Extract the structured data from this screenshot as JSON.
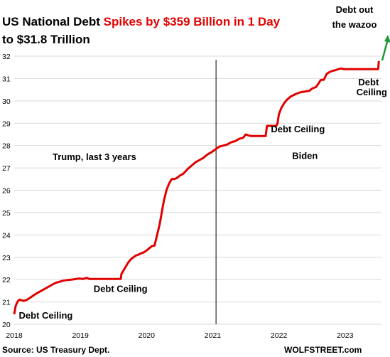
{
  "chart_data": {
    "type": "line",
    "title_part1": "US National Debt ",
    "title_part2": "Spikes by $359 Billion in 1 Day",
    "title_line2": "to $31.8 Trillion",
    "corner_annotation_line1": "Debt out",
    "corner_annotation_line2": "the wazoo",
    "source": "Source: US Treasury Dept.",
    "brand": "WOLFSTREET.com",
    "colors": {
      "line": "#e00000",
      "title_highlight": "#e00000",
      "corner_annotation": "#1f9a3a",
      "grid": "#d9d9d9"
    },
    "grid": true,
    "xlim": [
      2018.0,
      2023.55
    ],
    "ylim": [
      20,
      32
    ],
    "x_ticks": [
      2018,
      2019,
      2020,
      2021,
      2022,
      2023
    ],
    "y_ticks": [
      20,
      21,
      22,
      23,
      24,
      25,
      26,
      27,
      28,
      29,
      30,
      31,
      32
    ],
    "vertical_marker_x": 2021.05,
    "annotations": [
      {
        "text": "Debt Ceiling",
        "x": 2018.07,
        "y": 20.25
      },
      {
        "text": "Debt Ceiling",
        "x": 2019.2,
        "y": 21.45
      },
      {
        "text": "Trump, last 3 years",
        "x": 2018.58,
        "y": 27.35
      },
      {
        "text": "Biden",
        "x": 2022.2,
        "y": 27.4
      },
      {
        "text": "Debt Ceiling",
        "x": 2021.88,
        "y": 28.6
      },
      {
        "text": "Debt",
        "x": 2023.2,
        "y": 30.7
      },
      {
        "text": "Ceiling",
        "x": 2023.17,
        "y": 30.25
      }
    ],
    "x": [
      2018.0,
      2018.02,
      2018.04,
      2018.06,
      2018.08,
      2018.11,
      2018.14,
      2018.18,
      2018.22,
      2018.27,
      2018.32,
      2018.38,
      2018.44,
      2018.5,
      2018.56,
      2018.62,
      2018.68,
      2018.74,
      2018.8,
      2018.86,
      2018.92,
      2018.98,
      2019.04,
      2019.1,
      2019.13,
      2019.3,
      2019.5,
      2019.61,
      2019.62,
      2019.65,
      2019.68,
      2019.72,
      2019.76,
      2019.8,
      2019.84,
      2019.88,
      2019.92,
      2019.96,
      2020.0,
      2020.04,
      2020.08,
      2020.12,
      2020.16,
      2020.2,
      2020.23,
      2020.26,
      2020.3,
      2020.34,
      2020.38,
      2020.42,
      2020.46,
      2020.5,
      2020.56,
      2020.62,
      2020.68,
      2020.74,
      2020.8,
      2020.86,
      2020.92,
      2020.98,
      2021.05,
      2021.1,
      2021.16,
      2021.22,
      2021.28,
      2021.34,
      2021.4,
      2021.46,
      2021.5,
      2021.54,
      2021.58,
      2021.8,
      2021.82,
      2021.96,
      2021.98,
      2022.0,
      2022.04,
      2022.08,
      2022.12,
      2022.18,
      2022.25,
      2022.32,
      2022.4,
      2022.46,
      2022.5,
      2022.56,
      2022.6,
      2022.63,
      2022.68,
      2022.72,
      2022.77,
      2022.82,
      2022.86,
      2022.9,
      2022.94,
      2022.98,
      2023.02,
      2023.5,
      2023.51
    ],
    "values": [
      20.45,
      20.8,
      20.95,
      21.05,
      21.1,
      21.08,
      21.05,
      21.08,
      21.15,
      21.25,
      21.35,
      21.45,
      21.55,
      21.65,
      21.75,
      21.85,
      21.9,
      21.95,
      21.98,
      22.0,
      22.02,
      22.05,
      22.03,
      22.08,
      22.03,
      22.03,
      22.03,
      22.03,
      22.25,
      22.4,
      22.55,
      22.75,
      22.9,
      23.0,
      23.08,
      23.12,
      23.18,
      23.22,
      23.3,
      23.4,
      23.5,
      23.52,
      24.0,
      24.5,
      25.0,
      25.5,
      26.0,
      26.3,
      26.5,
      26.5,
      26.55,
      26.65,
      26.75,
      26.95,
      27.1,
      27.25,
      27.35,
      27.45,
      27.6,
      27.7,
      27.85,
      27.95,
      28.0,
      28.05,
      28.15,
      28.2,
      28.3,
      28.35,
      28.5,
      28.45,
      28.43,
      28.43,
      28.88,
      28.88,
      29.0,
      29.4,
      29.7,
      29.9,
      30.05,
      30.2,
      30.3,
      30.38,
      30.42,
      30.45,
      30.55,
      30.62,
      30.78,
      30.93,
      30.95,
      31.2,
      31.3,
      31.35,
      31.38,
      31.42,
      31.45,
      31.42,
      31.42,
      31.42,
      31.78
    ]
  }
}
